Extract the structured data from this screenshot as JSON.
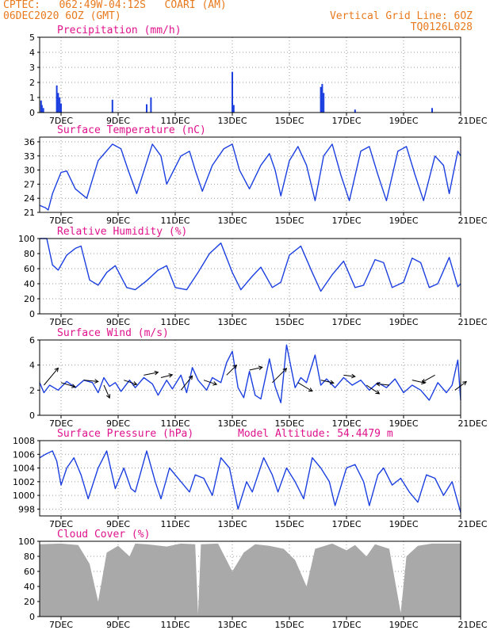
{
  "header": {
    "line1": "CPTEC:   062:49W-04:12S   COARI (AM)",
    "line2": "06DEC2020 6OZ (GMT)",
    "right1": "Vertical Grid Line: 6OZ",
    "right2": "TQ0126L028"
  },
  "x_ticks": [
    "7DEC",
    "9DEC",
    "11DEC",
    "13DEC",
    "15DEC",
    "17DEC",
    "19DEC",
    "21DEC"
  ],
  "colors": {
    "line": "#1c3fe0",
    "title": "#e0128c",
    "header": "#e87a1e",
    "cloud": "#a9a9a9"
  },
  "chart_data": [
    {
      "type": "bar",
      "title": "Precipitation (mm/h)",
      "ylim": [
        0,
        5
      ],
      "yticks": [
        0,
        1,
        2,
        3,
        4,
        5
      ],
      "x_range_days": [
        6.25,
        21
      ],
      "spikes": [
        {
          "x": 6.3,
          "y": 0.8
        },
        {
          "x": 6.33,
          "y": 0.5
        },
        {
          "x": 6.38,
          "y": 0.3
        },
        {
          "x": 6.85,
          "y": 1.8
        },
        {
          "x": 6.9,
          "y": 1.3
        },
        {
          "x": 6.95,
          "y": 1.0
        },
        {
          "x": 7.0,
          "y": 0.6
        },
        {
          "x": 8.8,
          "y": 0.85
        },
        {
          "x": 10.0,
          "y": 0.55
        },
        {
          "x": 10.15,
          "y": 1.0
        },
        {
          "x": 13.0,
          "y": 2.7
        },
        {
          "x": 13.05,
          "y": 0.5
        },
        {
          "x": 16.1,
          "y": 1.7
        },
        {
          "x": 16.15,
          "y": 1.9
        },
        {
          "x": 16.2,
          "y": 1.3
        },
        {
          "x": 17.3,
          "y": 0.2
        },
        {
          "x": 20.0,
          "y": 0.3
        }
      ]
    },
    {
      "type": "line",
      "title": "Surface Temperature (nC)",
      "ylim": [
        21,
        37
      ],
      "yticks": [
        21,
        24,
        27,
        30,
        33,
        36
      ],
      "points": [
        [
          6.25,
          22.5
        ],
        [
          6.45,
          22
        ],
        [
          6.55,
          21.5
        ],
        [
          6.7,
          25
        ],
        [
          7.0,
          29.5
        ],
        [
          7.2,
          29.8
        ],
        [
          7.5,
          26
        ],
        [
          7.9,
          24
        ],
        [
          8.3,
          32
        ],
        [
          8.8,
          35.5
        ],
        [
          9.1,
          34.5
        ],
        [
          9.35,
          30
        ],
        [
          9.65,
          25
        ],
        [
          10.2,
          35.5
        ],
        [
          10.5,
          33
        ],
        [
          10.7,
          27
        ],
        [
          11.2,
          33
        ],
        [
          11.5,
          34
        ],
        [
          11.7,
          30
        ],
        [
          11.95,
          25.5
        ],
        [
          12.3,
          31
        ],
        [
          12.7,
          34.5
        ],
        [
          13.0,
          35.5
        ],
        [
          13.25,
          30
        ],
        [
          13.6,
          26
        ],
        [
          14.0,
          31
        ],
        [
          14.3,
          33.5
        ],
        [
          14.5,
          30
        ],
        [
          14.7,
          24.5
        ],
        [
          15.0,
          32
        ],
        [
          15.3,
          35
        ],
        [
          15.6,
          31
        ],
        [
          15.9,
          23.5
        ],
        [
          16.2,
          33
        ],
        [
          16.5,
          35.5
        ],
        [
          16.8,
          29
        ],
        [
          17.1,
          23.5
        ],
        [
          17.5,
          34
        ],
        [
          17.8,
          35
        ],
        [
          18.1,
          29
        ],
        [
          18.4,
          23.5
        ],
        [
          18.8,
          34
        ],
        [
          19.1,
          35
        ],
        [
          19.4,
          29
        ],
        [
          19.7,
          23.5
        ],
        [
          20.1,
          33
        ],
        [
          20.4,
          31
        ],
        [
          20.6,
          25
        ],
        [
          20.9,
          34
        ],
        [
          21.0,
          33
        ]
      ]
    },
    {
      "type": "line",
      "title": "Relative Humidity (%)",
      "ylim": [
        0,
        100
      ],
      "yticks": [
        0,
        20,
        40,
        60,
        80,
        100
      ],
      "points": [
        [
          6.25,
          100
        ],
        [
          6.5,
          100
        ],
        [
          6.7,
          65
        ],
        [
          6.9,
          58
        ],
        [
          7.2,
          78
        ],
        [
          7.5,
          87
        ],
        [
          7.7,
          90
        ],
        [
          8.0,
          45
        ],
        [
          8.3,
          38
        ],
        [
          8.6,
          55
        ],
        [
          8.9,
          64
        ],
        [
          9.3,
          35
        ],
        [
          9.6,
          32
        ],
        [
          10.0,
          44
        ],
        [
          10.4,
          58
        ],
        [
          10.7,
          64
        ],
        [
          11.0,
          35
        ],
        [
          11.4,
          32
        ],
        [
          11.8,
          55
        ],
        [
          12.2,
          80
        ],
        [
          12.6,
          94
        ],
        [
          13.0,
          55
        ],
        [
          13.3,
          32
        ],
        [
          13.7,
          50
        ],
        [
          14.0,
          62
        ],
        [
          14.4,
          35
        ],
        [
          14.7,
          42
        ],
        [
          15.0,
          78
        ],
        [
          15.4,
          90
        ],
        [
          15.8,
          55
        ],
        [
          16.1,
          30
        ],
        [
          16.5,
          52
        ],
        [
          16.9,
          70
        ],
        [
          17.3,
          35
        ],
        [
          17.6,
          38
        ],
        [
          18.0,
          72
        ],
        [
          18.3,
          68
        ],
        [
          18.6,
          35
        ],
        [
          19.0,
          42
        ],
        [
          19.3,
          74
        ],
        [
          19.6,
          68
        ],
        [
          19.9,
          35
        ],
        [
          20.2,
          40
        ],
        [
          20.6,
          75
        ],
        [
          20.9,
          36
        ],
        [
          21.0,
          40
        ]
      ]
    },
    {
      "type": "line",
      "title": "Surface Wind (m/s)",
      "ylim": [
        0,
        6
      ],
      "yticks": [
        0,
        2,
        4,
        6
      ],
      "points": [
        [
          6.25,
          2.6
        ],
        [
          6.4,
          1.8
        ],
        [
          6.6,
          2.4
        ],
        [
          6.9,
          2.0
        ],
        [
          7.2,
          2.7
        ],
        [
          7.5,
          2.2
        ],
        [
          7.8,
          2.8
        ],
        [
          8.1,
          2.6
        ],
        [
          8.3,
          1.8
        ],
        [
          8.5,
          3.0
        ],
        [
          8.7,
          2.3
        ],
        [
          8.9,
          2.6
        ],
        [
          9.1,
          1.9
        ],
        [
          9.4,
          2.8
        ],
        [
          9.6,
          2.2
        ],
        [
          9.9,
          3.0
        ],
        [
          10.2,
          2.5
        ],
        [
          10.4,
          1.6
        ],
        [
          10.7,
          2.8
        ],
        [
          10.9,
          2.1
        ],
        [
          11.2,
          3.2
        ],
        [
          11.4,
          1.8
        ],
        [
          11.6,
          3.8
        ],
        [
          11.8,
          2.8
        ],
        [
          12.1,
          2.0
        ],
        [
          12.3,
          3.0
        ],
        [
          12.6,
          2.6
        ],
        [
          12.8,
          4.2
        ],
        [
          13.0,
          5.1
        ],
        [
          13.2,
          2.2
        ],
        [
          13.4,
          1.4
        ],
        [
          13.6,
          3.5
        ],
        [
          13.8,
          1.6
        ],
        [
          14.0,
          1.3
        ],
        [
          14.3,
          4.5
        ],
        [
          14.5,
          2.3
        ],
        [
          14.7,
          1.0
        ],
        [
          14.9,
          5.6
        ],
        [
          15.2,
          2.2
        ],
        [
          15.4,
          3.0
        ],
        [
          15.6,
          2.6
        ],
        [
          15.9,
          4.8
        ],
        [
          16.1,
          2.4
        ],
        [
          16.3,
          2.9
        ],
        [
          16.6,
          2.2
        ],
        [
          16.9,
          3.0
        ],
        [
          17.2,
          2.4
        ],
        [
          17.5,
          2.8
        ],
        [
          17.8,
          2.0
        ],
        [
          18.1,
          2.6
        ],
        [
          18.4,
          2.2
        ],
        [
          18.7,
          2.9
        ],
        [
          19.0,
          1.8
        ],
        [
          19.3,
          2.4
        ],
        [
          19.6,
          2.0
        ],
        [
          19.9,
          1.2
        ],
        [
          20.2,
          2.6
        ],
        [
          20.5,
          1.8
        ],
        [
          20.7,
          2.4
        ],
        [
          20.9,
          4.4
        ],
        [
          21.0,
          1.2
        ]
      ],
      "arrows": [
        [
          6.4,
          2.4,
          1.0,
          -1.2
        ],
        [
          7.0,
          2.6,
          1.0,
          0.3
        ],
        [
          7.8,
          2.8,
          1.0,
          0.1
        ],
        [
          8.5,
          2.4,
          0.4,
          0.9
        ],
        [
          9.2,
          2.8,
          0.9,
          0.3
        ],
        [
          9.9,
          3.2,
          1.0,
          -0.2
        ],
        [
          10.5,
          3.0,
          0.8,
          -0.2
        ],
        [
          11.2,
          2.0,
          0.8,
          -1.0
        ],
        [
          12.0,
          2.8,
          0.9,
          0.3
        ],
        [
          12.8,
          3.2,
          0.7,
          -0.7
        ],
        [
          13.6,
          3.6,
          0.9,
          -0.2
        ],
        [
          14.4,
          2.6,
          1.0,
          -1.0
        ],
        [
          15.3,
          2.6,
          1.0,
          0.6
        ],
        [
          16.1,
          2.8,
          0.9,
          0.2
        ],
        [
          16.9,
          3.2,
          0.8,
          0.1
        ],
        [
          17.7,
          2.4,
          0.9,
          0.6
        ],
        [
          18.5,
          2.4,
          -0.9,
          -0.1
        ],
        [
          19.3,
          2.8,
          0.9,
          0.2
        ],
        [
          20.1,
          3.2,
          -0.9,
          0.5
        ],
        [
          20.8,
          2.0,
          0.8,
          -0.6
        ]
      ]
    },
    {
      "type": "line",
      "title": "Surface Pressure (hPa)",
      "annotation": "Model Altitude: 54.4479 m",
      "ylim": [
        997,
        1008
      ],
      "yticks": [
        998,
        1000,
        1002,
        1004,
        1006,
        1008
      ],
      "points": [
        [
          6.25,
          1005.5
        ],
        [
          6.45,
          1006
        ],
        [
          6.7,
          1006.5
        ],
        [
          6.85,
          1005
        ],
        [
          7.0,
          1001.5
        ],
        [
          7.2,
          1004
        ],
        [
          7.45,
          1005.5
        ],
        [
          7.7,
          1003
        ],
        [
          7.95,
          999.5
        ],
        [
          8.3,
          1004
        ],
        [
          8.6,
          1006.5
        ],
        [
          8.9,
          1001
        ],
        [
          9.2,
          1004
        ],
        [
          9.45,
          1001
        ],
        [
          9.6,
          1000.5
        ],
        [
          10.0,
          1006.5
        ],
        [
          10.3,
          1002
        ],
        [
          10.5,
          999.5
        ],
        [
          10.8,
          1004
        ],
        [
          11.2,
          1002
        ],
        [
          11.5,
          1000.5
        ],
        [
          11.7,
          1003
        ],
        [
          12.0,
          1002.5
        ],
        [
          12.3,
          1000
        ],
        [
          12.6,
          1005.5
        ],
        [
          12.9,
          1004
        ],
        [
          13.2,
          998
        ],
        [
          13.5,
          1002
        ],
        [
          13.7,
          1000.5
        ],
        [
          14.1,
          1005.5
        ],
        [
          14.4,
          1003
        ],
        [
          14.6,
          1000.5
        ],
        [
          14.9,
          1004
        ],
        [
          15.2,
          1002
        ],
        [
          15.5,
          999.5
        ],
        [
          15.8,
          1005.5
        ],
        [
          16.1,
          1004
        ],
        [
          16.4,
          1002
        ],
        [
          16.6,
          998.5
        ],
        [
          17.0,
          1004
        ],
        [
          17.3,
          1004.5
        ],
        [
          17.6,
          1002
        ],
        [
          17.8,
          998.5
        ],
        [
          18.1,
          1003
        ],
        [
          18.3,
          1004
        ],
        [
          18.6,
          1001.5
        ],
        [
          18.9,
          1002.5
        ],
        [
          19.2,
          1000.5
        ],
        [
          19.5,
          999
        ],
        [
          19.8,
          1003
        ],
        [
          20.1,
          1002.5
        ],
        [
          20.4,
          1000
        ],
        [
          20.7,
          1002
        ],
        [
          21.0,
          997.5
        ]
      ]
    },
    {
      "type": "area",
      "title": "Cloud Cover (%)",
      "ylim": [
        0,
        100
      ],
      "yticks": [
        0,
        20,
        40,
        60,
        80,
        100
      ],
      "points": [
        [
          6.25,
          96
        ],
        [
          7.0,
          97
        ],
        [
          7.6,
          95
        ],
        [
          8.0,
          70
        ],
        [
          8.3,
          20
        ],
        [
          8.6,
          85
        ],
        [
          9.0,
          94
        ],
        [
          9.4,
          80
        ],
        [
          9.6,
          97
        ],
        [
          10.0,
          96
        ],
        [
          10.7,
          93
        ],
        [
          11.2,
          97
        ],
        [
          11.7,
          96
        ],
        [
          11.8,
          3
        ],
        [
          11.9,
          96
        ],
        [
          12.5,
          97
        ],
        [
          13.0,
          60
        ],
        [
          13.4,
          85
        ],
        [
          13.8,
          96
        ],
        [
          14.3,
          94
        ],
        [
          14.8,
          90
        ],
        [
          15.2,
          75
        ],
        [
          15.6,
          40
        ],
        [
          15.9,
          90
        ],
        [
          16.5,
          97
        ],
        [
          17.0,
          88
        ],
        [
          17.3,
          95
        ],
        [
          17.7,
          80
        ],
        [
          18.0,
          96
        ],
        [
          18.5,
          90
        ],
        [
          18.9,
          5
        ],
        [
          19.1,
          80
        ],
        [
          19.5,
          94
        ],
        [
          20.0,
          97
        ],
        [
          21.0,
          97
        ]
      ]
    }
  ]
}
